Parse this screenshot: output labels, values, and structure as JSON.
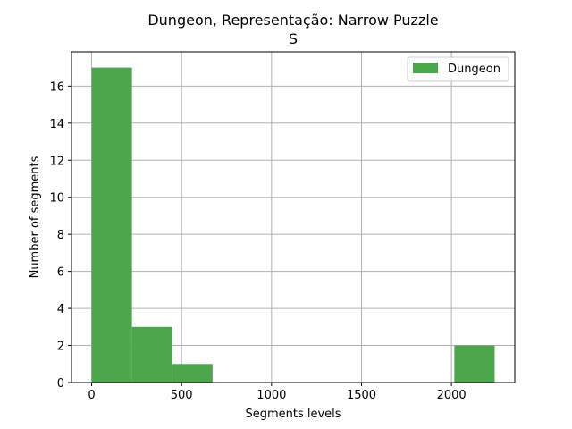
{
  "chart_data": {
    "type": "bar",
    "title": "Dungeon, Representação: Narrow Puzzle",
    "subtitle": "S",
    "xlabel": "Segments levels",
    "ylabel": "Number of segments",
    "xlim": [
      -112,
      2352
    ],
    "ylim": [
      0,
      17.85
    ],
    "xticks": [
      0,
      500,
      1000,
      1500,
      2000
    ],
    "yticks": [
      0,
      2,
      4,
      6,
      8,
      10,
      12,
      14,
      16
    ],
    "grid": true,
    "legend_position": "top-right",
    "series": [
      {
        "name": "Dungeon",
        "color": "#4ca64c",
        "bins": [
          {
            "start": 0,
            "end": 224,
            "count": 17
          },
          {
            "start": 224,
            "end": 448,
            "count": 3
          },
          {
            "start": 448,
            "end": 672,
            "count": 1
          },
          {
            "start": 672,
            "end": 896,
            "count": 0
          },
          {
            "start": 896,
            "end": 1120,
            "count": 0
          },
          {
            "start": 1120,
            "end": 1344,
            "count": 0
          },
          {
            "start": 1344,
            "end": 1568,
            "count": 0
          },
          {
            "start": 1568,
            "end": 1792,
            "count": 0
          },
          {
            "start": 1792,
            "end": 2016,
            "count": 0
          },
          {
            "start": 2016,
            "end": 2240,
            "count": 2
          }
        ]
      }
    ]
  }
}
